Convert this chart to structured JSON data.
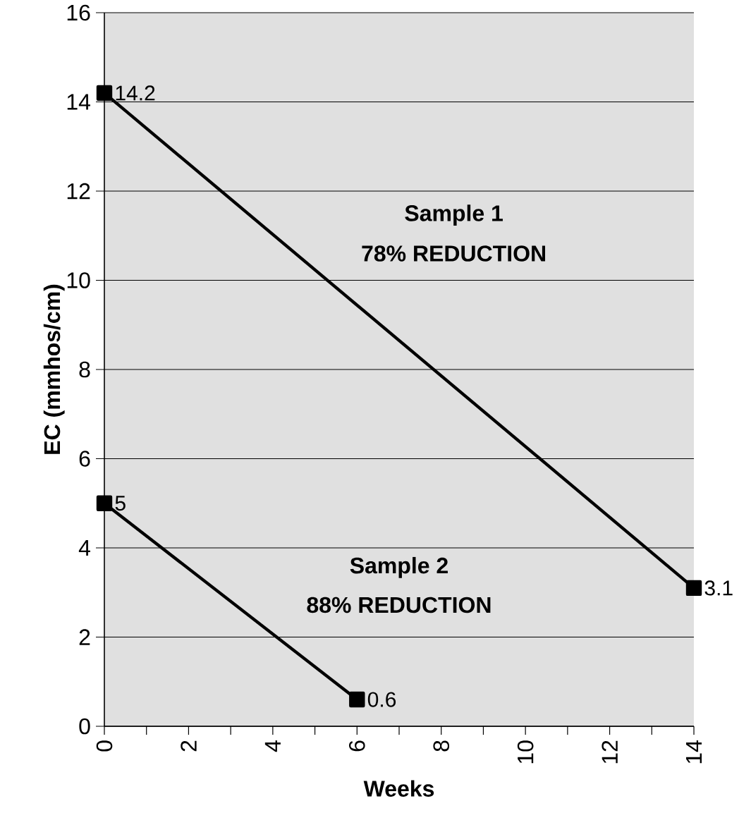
{
  "chart_data": {
    "type": "line",
    "xlabel": "Weeks",
    "ylabel": "EC (mmhos/cm)",
    "xlim": [
      0,
      14
    ],
    "xticks": [
      0,
      2,
      4,
      6,
      8,
      10,
      12,
      14
    ],
    "ylim": [
      0,
      16
    ],
    "yticks": [
      0,
      2,
      4,
      6,
      8,
      10,
      12,
      14,
      16
    ],
    "series": [
      {
        "color": "#000000",
        "x": [
          0,
          14
        ],
        "values": [
          14.2,
          3.1
        ]
      },
      {
        "color": "#000000",
        "x": [
          0,
          6
        ],
        "values": [
          5,
          0.6
        ]
      }
    ],
    "annotations": [
      "Sample 1",
      "78% REDUCTION",
      "Sample 2",
      "88% REDUCTION"
    ],
    "data_labels": true,
    "grid": "y",
    "marker": "square",
    "line_style": "solid",
    "legend": false
  }
}
